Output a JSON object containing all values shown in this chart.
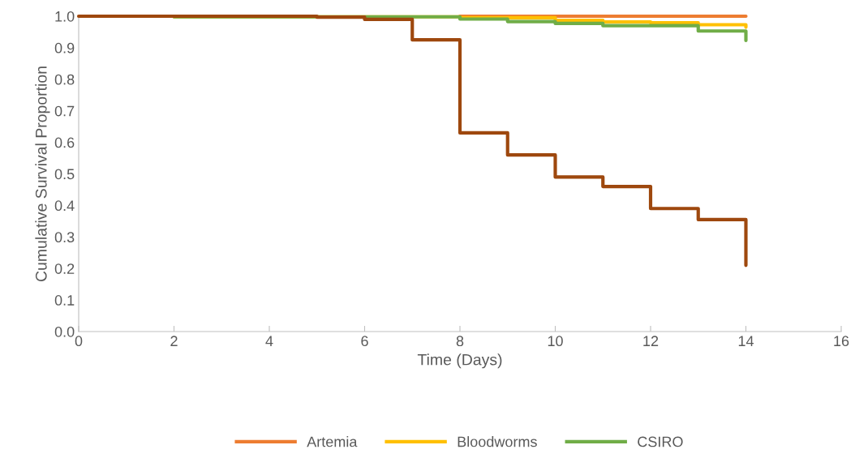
{
  "chart_data": {
    "type": "step",
    "xlabel": "Time (Days)",
    "ylabel": "Cumulative Survival Proportion",
    "xlim": [
      0,
      16
    ],
    "xticks": [
      0,
      2,
      4,
      6,
      8,
      10,
      12,
      14,
      16
    ],
    "ylim": [
      0,
      1
    ],
    "yticks": [
      {
        "value": 0,
        "label": "0.0"
      },
      {
        "value": 0.1,
        "label": "0.1"
      },
      {
        "value": 0.2,
        "label": "0.2"
      },
      {
        "value": 0.3,
        "label": "0.3"
      },
      {
        "value": 0.4,
        "label": "0.4"
      },
      {
        "value": 0.5,
        "label": "0.5"
      },
      {
        "value": 0.6,
        "label": "0.6"
      },
      {
        "value": 0.7,
        "label": "0.7"
      },
      {
        "value": 0.8,
        "label": "0.8"
      },
      {
        "value": 0.9,
        "label": "0.9"
      },
      {
        "value": 1,
        "label": "1.0"
      }
    ],
    "grid": false,
    "legend": "bottom",
    "marker": "none",
    "line_style": "solid",
    "series": [
      {
        "name": "Artemia",
        "color": "#ed7d31",
        "x": [
          8,
          14
        ],
        "values": [
          1.0,
          1.0
        ]
      },
      {
        "name": "Bloodworms",
        "color": "#ffc000",
        "x": [
          2,
          8,
          9,
          10,
          11,
          12,
          13,
          14
        ],
        "values": [
          0.998,
          0.995,
          0.995,
          0.987,
          0.982,
          0.979,
          0.973,
          0.965
        ]
      },
      {
        "name": "CSIRO",
        "color": "#70ad47",
        "x": [
          2,
          8,
          9,
          10,
          11,
          13,
          14
        ],
        "values": [
          0.998,
          0.991,
          0.983,
          0.977,
          0.97,
          0.953,
          0.923
        ]
      },
      {
        "color": "#9e480e",
        "x": [
          0,
          5,
          6,
          7,
          8,
          9,
          10,
          11,
          12,
          13,
          14
        ],
        "values": [
          1.0,
          0.997,
          0.99,
          0.925,
          0.63,
          0.56,
          0.49,
          0.46,
          0.39,
          0.355,
          0.21
        ]
      }
    ]
  }
}
